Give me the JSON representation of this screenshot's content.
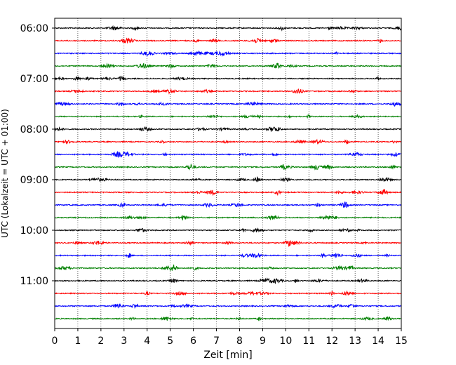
{
  "chart_data": {
    "type": "line",
    "title": "",
    "xlabel": "Zeit  [min]",
    "ylabel": "UTC (Lokalzeit = UTC + 01:00)",
    "xlim": [
      0,
      15
    ],
    "x_ticks": [
      0,
      1,
      2,
      3,
      4,
      5,
      6,
      7,
      8,
      9,
      10,
      11,
      12,
      13,
      14,
      15
    ],
    "x_tick_labels": [
      "0",
      "1",
      "2",
      "3",
      "4",
      "5",
      "6",
      "7",
      "8",
      "9",
      "10",
      "11",
      "12",
      "13",
      "14",
      "15"
    ],
    "y_tick_labels": [
      "06:00",
      "07:00",
      "08:00",
      "09:00",
      "10:00",
      "11:00"
    ],
    "y_tick_trace_index": [
      0,
      4,
      8,
      12,
      16,
      20
    ],
    "trace_interval_min": 15,
    "trace_start": "06:00",
    "trace_count": 24,
    "trace_colors": [
      "#000000",
      "#ff0000",
      "#0000ff",
      "#008000"
    ],
    "grid": "vertical dotted",
    "traces": [
      {
        "start": "06:00",
        "color": "#000000"
      },
      {
        "start": "06:15",
        "color": "#ff0000"
      },
      {
        "start": "06:30",
        "color": "#0000ff"
      },
      {
        "start": "06:45",
        "color": "#008000"
      },
      {
        "start": "07:00",
        "color": "#000000"
      },
      {
        "start": "07:15",
        "color": "#ff0000"
      },
      {
        "start": "07:30",
        "color": "#0000ff"
      },
      {
        "start": "07:45",
        "color": "#008000"
      },
      {
        "start": "08:00",
        "color": "#000000"
      },
      {
        "start": "08:15",
        "color": "#ff0000"
      },
      {
        "start": "08:30",
        "color": "#0000ff"
      },
      {
        "start": "08:45",
        "color": "#008000"
      },
      {
        "start": "09:00",
        "color": "#000000"
      },
      {
        "start": "09:15",
        "color": "#ff0000"
      },
      {
        "start": "09:30",
        "color": "#0000ff"
      },
      {
        "start": "09:45",
        "color": "#008000"
      },
      {
        "start": "10:00",
        "color": "#000000"
      },
      {
        "start": "10:15",
        "color": "#ff0000"
      },
      {
        "start": "10:30",
        "color": "#0000ff"
      },
      {
        "start": "10:45",
        "color": "#008000"
      },
      {
        "start": "11:00",
        "color": "#000000"
      },
      {
        "start": "11:15",
        "color": "#ff0000"
      },
      {
        "start": "11:30",
        "color": "#0000ff"
      },
      {
        "start": "11:45",
        "color": "#008000"
      }
    ]
  }
}
